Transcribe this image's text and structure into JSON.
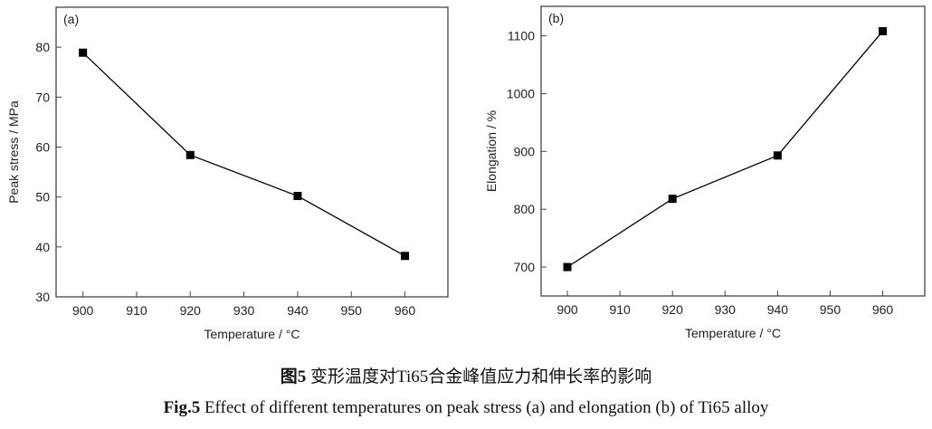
{
  "chart_data": [
    {
      "type": "line",
      "panel_label": "(a)",
      "xlabel": "Temperature / °C",
      "ylabel": "Peak stress / MPa",
      "x": [
        900,
        920,
        940,
        960
      ],
      "series": [
        {
          "values": [
            78.9,
            58.4,
            50.2,
            38.2
          ]
        }
      ],
      "xlim": [
        895,
        968
      ],
      "ylim": [
        30,
        88
      ],
      "xticks": [
        900,
        910,
        920,
        930,
        940,
        950,
        960
      ],
      "yticks": [
        30,
        40,
        50,
        60,
        70,
        80
      ],
      "marker": "square",
      "grid": false,
      "color": "#000000"
    },
    {
      "type": "line",
      "panel_label": "(b)",
      "xlabel": "Temperature / °C",
      "ylabel": "Elongation / %",
      "x": [
        900,
        920,
        940,
        960
      ],
      "series": [
        {
          "values": [
            700,
            818,
            893,
            1108
          ]
        }
      ],
      "xlim": [
        895,
        968
      ],
      "ylim": [
        650,
        1151
      ],
      "xticks": [
        900,
        910,
        920,
        930,
        940,
        950,
        960
      ],
      "yticks": [
        700,
        800,
        900,
        1000,
        1100
      ],
      "marker": "square",
      "grid": false,
      "color": "#000000"
    }
  ],
  "caption": {
    "cn_label": "图5",
    "cn_text": "变形温度对Ti65合金峰值应力和伸长率的影响",
    "en_label": "Fig.5",
    "en_text": "Effect of different temperatures on peak stress (a) and elongation (b) of Ti65 alloy"
  }
}
